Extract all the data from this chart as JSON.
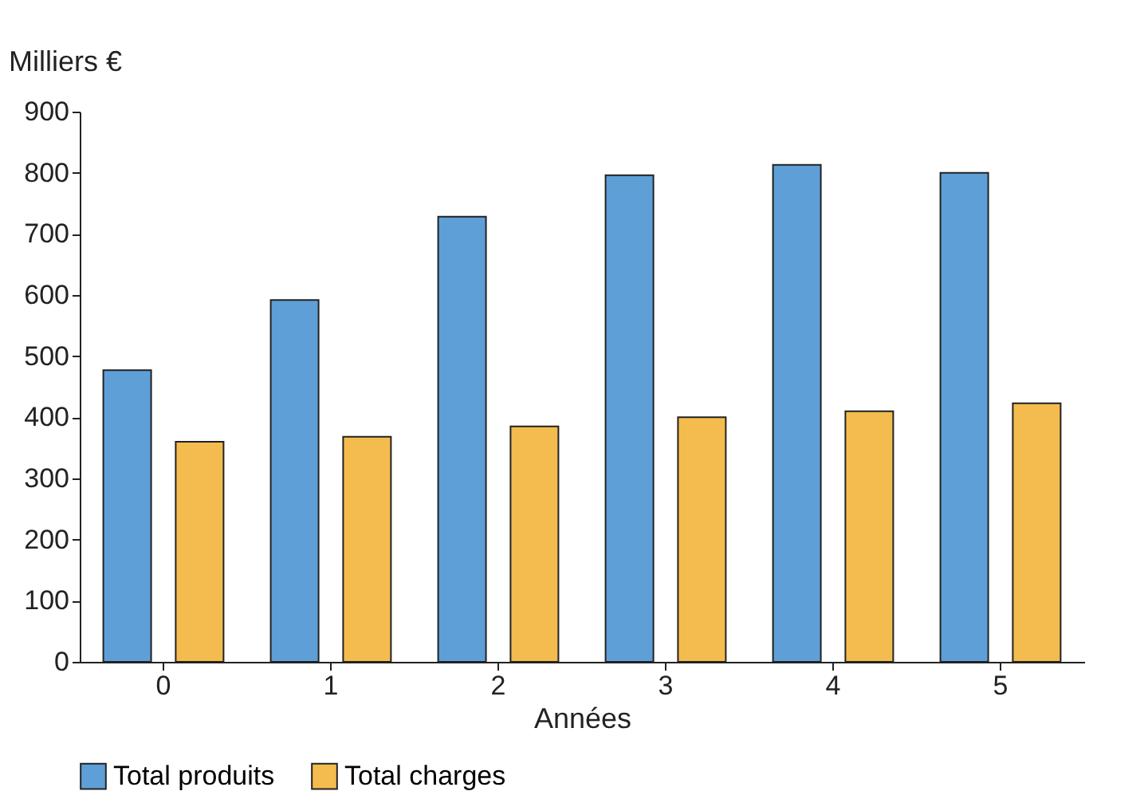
{
  "chart_data": {
    "type": "bar",
    "xlabel": "Années",
    "ylabel": "Milliers €",
    "categories": [
      "0",
      "1",
      "2",
      "3",
      "4",
      "5"
    ],
    "series": [
      {
        "name": "Total produits",
        "color": "#5e9fd8",
        "values": [
          477,
          592,
          728,
          796,
          813,
          800
        ]
      },
      {
        "name": "Total charges",
        "color": "#f4bc4e",
        "values": [
          360,
          368,
          385,
          400,
          410,
          423
        ]
      }
    ],
    "ylim": [
      0,
      900
    ],
    "yticks": [
      0,
      100,
      200,
      300,
      400,
      500,
      600,
      700,
      800,
      900
    ],
    "grid": false,
    "legend": "bottom"
  }
}
